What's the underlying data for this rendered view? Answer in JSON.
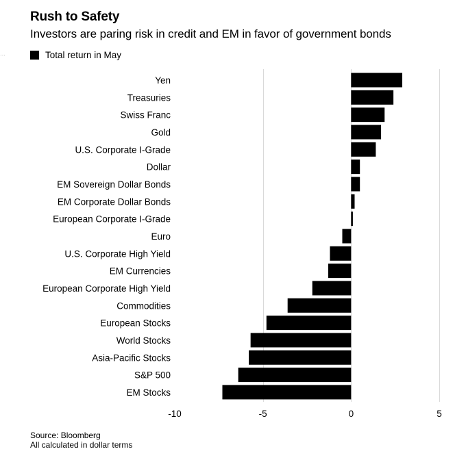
{
  "chart_data": {
    "type": "bar",
    "orientation": "horizontal",
    "title": "Rush to Safety",
    "subtitle": "Investors are paring risk in credit and EM in favor of government bonds",
    "legend": "Total return in May",
    "categories": [
      "Yen",
      "Treasuries",
      "Swiss Franc",
      "Gold",
      "U.S. Corporate I-Grade",
      "Dollar",
      "EM Sovereign Dollar Bonds",
      "EM Corporate Dollar Bonds",
      "European Corporate I-Grade",
      "Euro",
      "U.S. Corporate High Yield",
      "EM Currencies",
      "European Corporate High Yield",
      "Commodities",
      "European Stocks",
      "World Stocks",
      "Asia-Pacific Stocks",
      "S&P 500",
      "EM Stocks"
    ],
    "values": [
      2.9,
      2.4,
      1.9,
      1.7,
      1.4,
      0.5,
      0.5,
      0.2,
      0.1,
      -0.5,
      -1.2,
      -1.3,
      -2.2,
      -3.6,
      -4.8,
      -5.7,
      -5.8,
      -6.4,
      -7.3
    ],
    "xlim": [
      -10,
      5
    ],
    "xticks": [
      -10,
      -5,
      0,
      5
    ],
    "xtick_labels": [
      "-10",
      "-5",
      "0",
      "5"
    ],
    "bar_color": "#000000",
    "grid_color": "#d9d9d9",
    "gridlines": "vertical"
  },
  "footer": {
    "source": "Source: Bloomberg",
    "note": "All calculated in dollar terms"
  }
}
